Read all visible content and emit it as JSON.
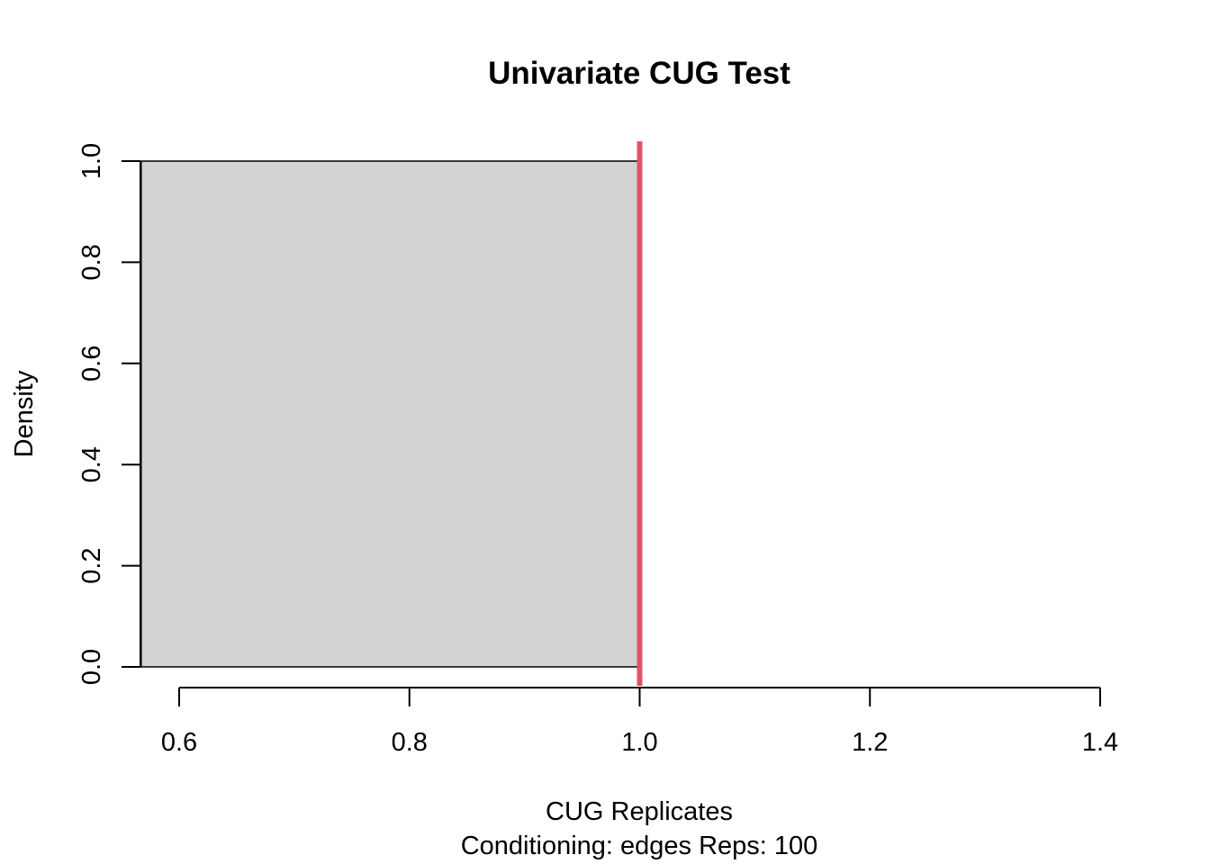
{
  "chart_data": {
    "type": "histogram",
    "title": "Univariate CUG Test",
    "xlabel": "CUG Replicates",
    "sub": "Conditioning: edges Reps: 100",
    "ylabel": "Density",
    "xlim": [
      0.6,
      1.4
    ],
    "ylim": [
      0,
      1
    ],
    "x_ticks": [
      "0.6",
      "0.8",
      "1.0",
      "1.2",
      "1.4"
    ],
    "y_ticks": [
      "0.0",
      "0.2",
      "0.4",
      "0.6",
      "0.8",
      "1.0"
    ],
    "bars": [
      {
        "x0": 0.567,
        "x1": 1.0,
        "density": 1.0
      }
    ],
    "observed_value": 1.0,
    "bar_fill": "#d3d3d3",
    "observed_line_color": "#df536b",
    "grid": false
  }
}
